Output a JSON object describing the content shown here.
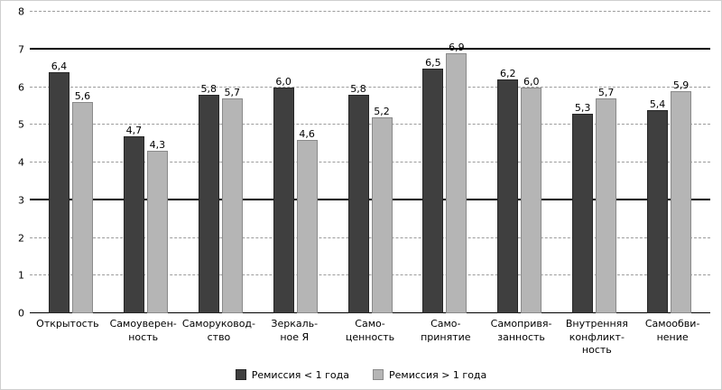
{
  "chart_data": {
    "type": "bar",
    "title": "",
    "xlabel": "",
    "ylabel": "",
    "ylim": [
      0,
      8
    ],
    "ytick_step": 1,
    "reference_lines": [
      3,
      7
    ],
    "grid": "dashed horizontal gridlines at each integer",
    "legend_position": "bottom",
    "decimal_separator": ",",
    "categories": [
      "Открытость",
      "Самоуверенность",
      "Саморуководство",
      "Зеркальное Я",
      "Самоценность",
      "Самопринятие",
      "Самопривязанность",
      "Внутренняя конфликтность",
      "Самообвинение"
    ],
    "category_label_lines": [
      [
        "Открытость"
      ],
      [
        "Самоуверен-",
        "ность"
      ],
      [
        "Саморуковод-",
        "ство"
      ],
      [
        "Зеркаль-",
        "ное Я"
      ],
      [
        "Само-",
        "ценность"
      ],
      [
        "Само-",
        "принятие"
      ],
      [
        "Самопривя-",
        "занность"
      ],
      [
        "Внутренняя",
        "конфликт-",
        "ность"
      ],
      [
        "Самообви-",
        "нение"
      ]
    ],
    "series": [
      {
        "name": "Ремиссия < 1 года",
        "color": "#3f3f3f",
        "values": [
          6.4,
          4.7,
          5.8,
          6.0,
          5.8,
          6.5,
          6.2,
          5.3,
          5.4
        ]
      },
      {
        "name": "Ремиссия > 1 года",
        "color": "#b5b5b5",
        "values": [
          5.6,
          4.3,
          5.7,
          4.6,
          5.2,
          6.9,
          6.0,
          5.7,
          5.9
        ]
      }
    ]
  }
}
